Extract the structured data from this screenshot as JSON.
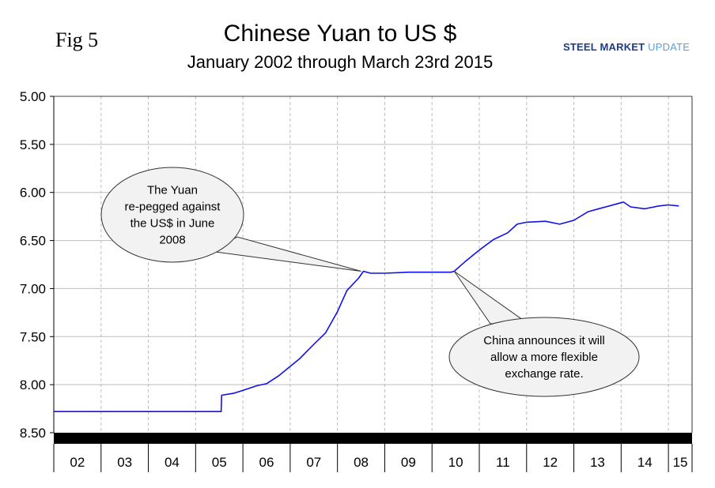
{
  "header": {
    "fig_label": "Fig 5",
    "title": "Chinese Yuan to US $",
    "subtitle": "January 2002 through March 23rd 2015",
    "logo": {
      "word1": "STEEL",
      "word2": "MARKET",
      "word3": "UPDATE"
    }
  },
  "colors": {
    "series": "#1010ee",
    "grid": "#bdbdbd",
    "axis_band": "#000000",
    "callout_fill": "#f2f2f2"
  },
  "chart_data": {
    "type": "line",
    "title": "Chinese Yuan to US $",
    "subtitle": "January 2002 through March 23rd 2015",
    "y_reversed": true,
    "ylim": [
      5.0,
      8.5
    ],
    "yticks": [
      "5.00",
      "5.50",
      "6.00",
      "6.50",
      "7.00",
      "7.50",
      "8.00",
      "8.50"
    ],
    "xlim": [
      2002.0,
      2015.5
    ],
    "xticks": [
      "02",
      "03",
      "04",
      "05",
      "06",
      "07",
      "08",
      "09",
      "10",
      "11",
      "12",
      "13",
      "14",
      "15"
    ],
    "grid": true,
    "series": [
      {
        "x": [
          2002.0,
          2003.0,
          2004.0,
          2004.9,
          2005.54,
          2005.55,
          2005.8,
          2006.0,
          2006.3,
          2006.5,
          2006.75,
          2007.0,
          2007.2,
          2007.5,
          2007.75,
          2008.0,
          2008.2,
          2008.45,
          2008.55,
          2008.7,
          2009.0,
          2009.5,
          2010.0,
          2010.4,
          2010.47,
          2010.7,
          2011.0,
          2011.3,
          2011.6,
          2011.8,
          2012.0,
          2012.4,
          2012.7,
          2013.0,
          2013.3,
          2013.6,
          2013.9,
          2014.05,
          2014.2,
          2014.5,
          2014.8,
          2015.0,
          2015.22
        ],
        "y": [
          8.28,
          8.28,
          8.28,
          8.28,
          8.28,
          8.11,
          8.09,
          8.06,
          8.01,
          7.99,
          7.91,
          7.81,
          7.73,
          7.58,
          7.46,
          7.24,
          7.02,
          6.89,
          6.82,
          6.84,
          6.84,
          6.83,
          6.83,
          6.83,
          6.82,
          6.72,
          6.6,
          6.49,
          6.42,
          6.33,
          6.31,
          6.3,
          6.33,
          6.29,
          6.2,
          6.16,
          6.12,
          6.1,
          6.15,
          6.17,
          6.14,
          6.13,
          6.14
        ]
      }
    ],
    "annotations": [
      {
        "lines": [
          "The Yuan",
          "re-pegged against",
          "the US$ in June",
          "2008"
        ],
        "x": 2008.5,
        "y": 6.82
      },
      {
        "lines": [
          "China announces it will",
          "allow a more flexible",
          "exchange rate."
        ],
        "x": 2010.47,
        "y": 6.82
      }
    ]
  }
}
